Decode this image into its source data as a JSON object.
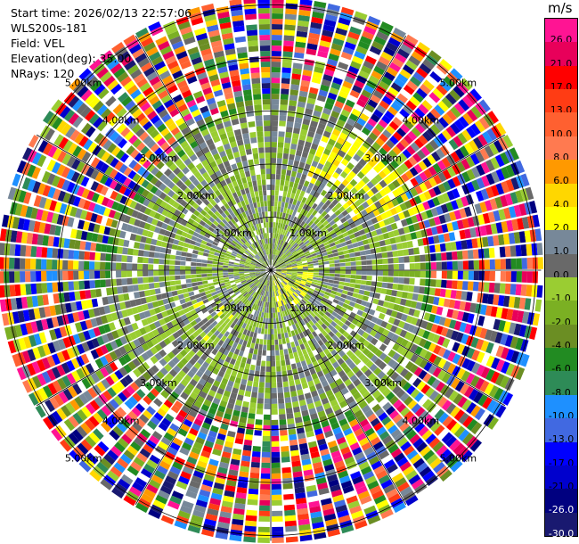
{
  "header": {
    "start_time": "Start time: 2026/02/13 22:57:06",
    "instrument": "WLS200s-181",
    "field": "Field: VEL",
    "elevation": "Elevation(deg): 35.00",
    "nrays": "NRays: 120"
  },
  "colorbar": {
    "unit": "m/s",
    "levels": [
      {
        "label": "26.0",
        "color": "#ff1493",
        "text": "#000000"
      },
      {
        "label": "21.0",
        "color": "#e8005a",
        "text": "#000000"
      },
      {
        "label": "17.0",
        "color": "#ff0000",
        "text": "#000000"
      },
      {
        "label": "13.0",
        "color": "#ff3c14",
        "text": "#000000"
      },
      {
        "label": "10.0",
        "color": "#ff6030",
        "text": "#000000"
      },
      {
        "label": "8.0",
        "color": "#ff7a50",
        "text": "#000000"
      },
      {
        "label": "6.0",
        "color": "#ff9900",
        "text": "#000000"
      },
      {
        "label": "4.0",
        "color": "#ffd700",
        "text": "#000000"
      },
      {
        "label": "2.0",
        "color": "#ffff00",
        "text": "#000000"
      },
      {
        "label": "1.0",
        "color": "#778899",
        "text": "#000000"
      },
      {
        "label": "0.0",
        "color": "#696969",
        "text": "#000000"
      },
      {
        "label": "-1.0",
        "color": "#9acd32",
        "text": "#000000"
      },
      {
        "label": "-2.0",
        "color": "#7bb023",
        "text": "#000000"
      },
      {
        "label": "-4.0",
        "color": "#6b8e23",
        "text": "#000000"
      },
      {
        "label": "-6.0",
        "color": "#228b22",
        "text": "#000000"
      },
      {
        "label": "-8.0",
        "color": "#2e8b57",
        "text": "#000000"
      },
      {
        "label": "-10.0",
        "color": "#1e90ff",
        "text": "#000000"
      },
      {
        "label": "-13.0",
        "color": "#4169e1",
        "text": "#000000"
      },
      {
        "label": "-17.0",
        "color": "#0000ff",
        "text": "#000000"
      },
      {
        "label": "-21.0",
        "color": "#0000cd",
        "text": "#000000"
      },
      {
        "label": "-26.0",
        "color": "#000080",
        "text": "#ffffff"
      },
      {
        "label": "-30.0",
        "color": "#191970",
        "text": "#ffffff"
      }
    ]
  },
  "chart_data": {
    "type": "heatmap",
    "projection": "polar (PPI)",
    "field": "VEL",
    "unit": "m/s",
    "nrays": 120,
    "range_ring_labels": [
      "1.00km",
      "2.00km",
      "3.00km",
      "4.00km",
      "5.00km"
    ],
    "radial_spokes": 12,
    "structure": {
      "inner_region_km": 3.2,
      "inner_values": "mostly -2 to 1 m/s (gray and yellow-green), localized 2-4 m/s patches northeast and near center",
      "outer_region_km": [
        3.2,
        5.2
      ],
      "outer_values": "noise: all levels from -30 to 26 m/s"
    },
    "colorbar_levels": [
      26.0,
      21.0,
      17.0,
      13.0,
      10.0,
      8.0,
      6.0,
      4.0,
      2.0,
      1.0,
      0.0,
      -1.0,
      -2.0,
      -4.0,
      -6.0,
      -8.0,
      -10.0,
      -13.0,
      -17.0,
      -21.0,
      -26.0,
      -30.0
    ]
  }
}
